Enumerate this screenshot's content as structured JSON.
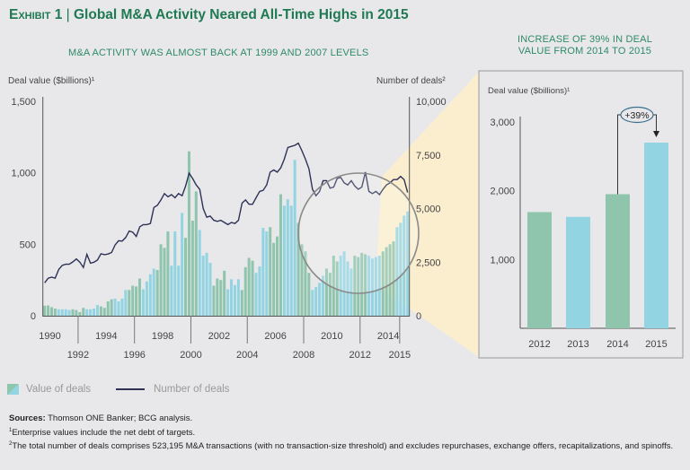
{
  "title": {
    "exhibit": "Exhibit 1",
    "separator": "|",
    "text": "Global M&A Activity Neared All-Time Highs in 2015"
  },
  "colors": {
    "title": "#1f7a53",
    "bar_even": "#8fc4ad",
    "bar_odd": "#93d4e2",
    "line": "#2e3256",
    "cone": "#fbeecf"
  },
  "chart_data": [
    {
      "type": "bar+line",
      "title": "M&A ACTIVITY WAS ALMOST BACK AT 1999 AND 2007 LEVELS",
      "ylabel": "Deal value ($billions)¹",
      "y2label": "Number of deals²",
      "ylim": [
        0,
        1500
      ],
      "y2lim": [
        0,
        10000
      ],
      "yticks": [
        "1,500",
        "1,000",
        "500",
        "0"
      ],
      "y2ticks": [
        "10,000",
        "7,500",
        "5,000",
        "2,500",
        "0"
      ],
      "x_start": 1990,
      "x_end": 2015,
      "frequency": "quarterly",
      "xticks_top": [
        "1990",
        "1994",
        "1998",
        "2002",
        "2006",
        "2010",
        "2014"
      ],
      "xticks_bottom": [
        "1992",
        "1996",
        "2000",
        "2004",
        "2008",
        "2012",
        "2015"
      ],
      "series": [
        {
          "name": "Value of deals",
          "type": "bar",
          "values": [
            70,
            72,
            60,
            50,
            45,
            45,
            45,
            40,
            45,
            40,
            25,
            55,
            45,
            45,
            50,
            75,
            65,
            55,
            100,
            115,
            120,
            100,
            120,
            180,
            180,
            210,
            205,
            260,
            185,
            240,
            290,
            330,
            320,
            500,
            475,
            590,
            350,
            590,
            350,
            720,
            545,
            1150,
            665,
            870,
            600,
            420,
            440,
            370,
            210,
            260,
            250,
            315,
            185,
            255,
            215,
            255,
            180,
            340,
            405,
            385,
            300,
            345,
            615,
            590,
            620,
            510,
            555,
            850,
            770,
            815,
            770,
            1090,
            650,
            500,
            450,
            300,
            180,
            200,
            230,
            280,
            330,
            300,
            420,
            380,
            420,
            450,
            380,
            330,
            420,
            410,
            440,
            430,
            420,
            400,
            410,
            420,
            450,
            480,
            500,
            520,
            620,
            650,
            700,
            730
          ]
        },
        {
          "name": "Number of deals",
          "type": "line",
          "values": [
            1535,
            1750,
            1800,
            1750,
            2160,
            2350,
            2400,
            2400,
            2510,
            2650,
            2500,
            2250,
            2860,
            2450,
            2500,
            2600,
            2890,
            2850,
            2880,
            2950,
            3300,
            3500,
            3480,
            3650,
            3950,
            3900,
            3700,
            4150,
            4250,
            4250,
            4300,
            5050,
            5150,
            5400,
            5700,
            5550,
            5650,
            5500,
            5700,
            5600,
            6050,
            6650,
            6400,
            6100,
            5900,
            5000,
            4600,
            4650,
            4450,
            4400,
            4450,
            4350,
            4250,
            4350,
            4300,
            4450,
            5250,
            5400,
            5200,
            5200,
            5500,
            5800,
            5850,
            6100,
            6700,
            6800,
            6700,
            6900,
            7300,
            7850,
            7900,
            7950,
            8050,
            7700,
            7300,
            6850,
            5900,
            5600,
            5800,
            6300,
            6300,
            5950,
            6000,
            6400,
            6450,
            6200,
            6100,
            6300,
            6050,
            5900,
            6000,
            6700,
            5800,
            5700,
            5800,
            5650,
            5900,
            6100,
            6200,
            6350,
            6350,
            6500,
            6350,
            5750
          ]
        }
      ],
      "legend": "bottom-left"
    },
    {
      "type": "bar",
      "title_line1": "INCREASE OF 39% IN DEAL",
      "title_line2": "VALUE FROM 2014 TO 2015",
      "ylabel": "Deal value ($billions)¹",
      "ylim": [
        0,
        3000
      ],
      "yticks": [
        "3,000",
        "2,000",
        "1,000"
      ],
      "categories": [
        "2012",
        "2013",
        "2014",
        "2015"
      ],
      "values": [
        1690,
        1620,
        1950,
        2700
      ],
      "annotation": "+39%"
    }
  ],
  "legend": {
    "value": "Value of deals",
    "number": "Number of deals"
  },
  "notes": {
    "sources_label": "Sources:",
    "sources": "Thomson ONE Banker; BCG analysis.",
    "note1_mark": "1",
    "note1": "Enterprise values include the net debt of targets.",
    "note2_mark": "2",
    "note2": "The total number of deals comprises 523,195 M&A transactions (with no transaction-size threshold) and excludes repurchases, exchange offers, recapitalizations, and spinoffs."
  }
}
